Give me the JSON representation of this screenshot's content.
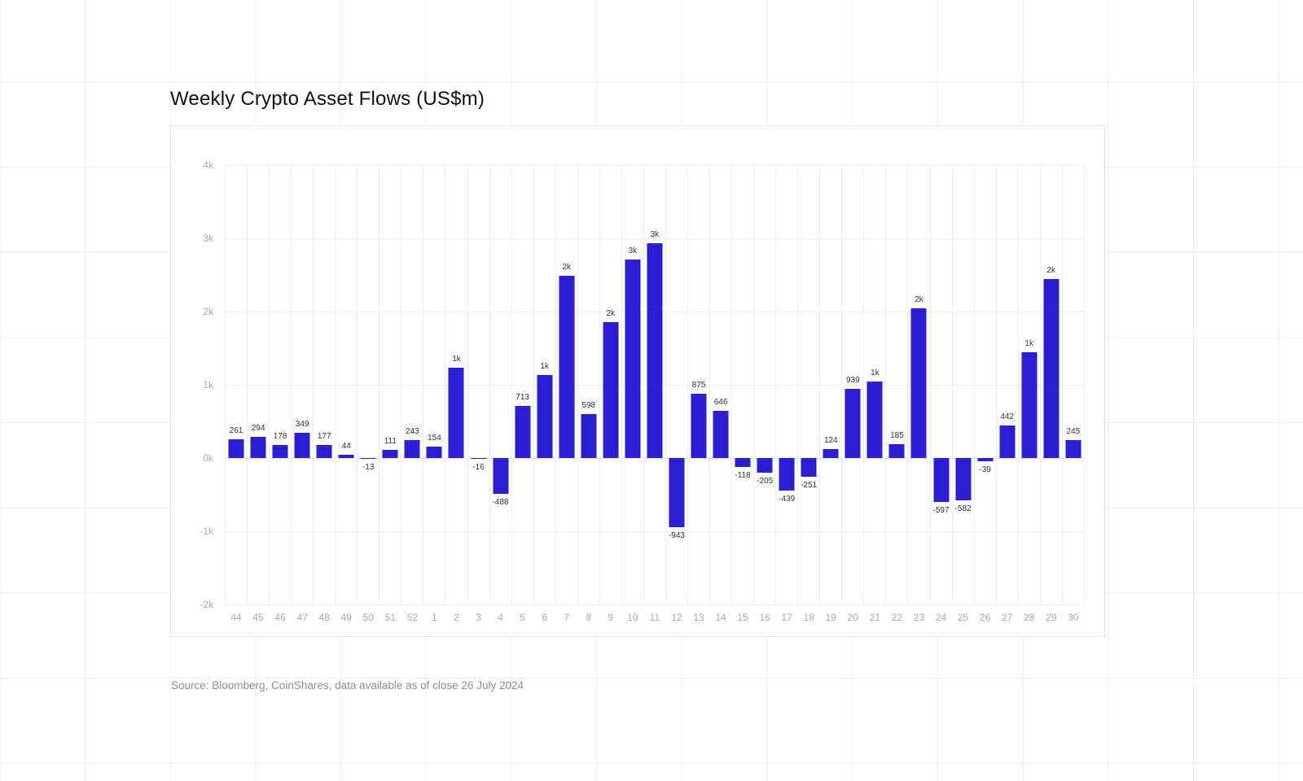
{
  "chart": {
    "title": "Weekly Crypto Asset Flows (US$m)",
    "source": "Source: Bloomberg, CoinShares, data available as of close 26 July 2024"
  },
  "chart_data": {
    "type": "bar",
    "title": "Weekly Crypto Asset Flows (US$m)",
    "categories": [
      "44",
      "45",
      "46",
      "47",
      "48",
      "49",
      "50",
      "51",
      "52",
      "1",
      "2",
      "3",
      "4",
      "5",
      "6",
      "7",
      "8",
      "9",
      "10",
      "11",
      "12",
      "13",
      "14",
      "15",
      "16",
      "17",
      "18",
      "19",
      "20",
      "21",
      "22",
      "23",
      "24",
      "25",
      "26",
      "27",
      "28",
      "29",
      "30"
    ],
    "values": [
      261,
      294,
      178,
      349,
      177,
      44,
      -13,
      111,
      243,
      154,
      1230,
      -16,
      -488,
      713,
      1130,
      2490,
      598,
      1860,
      2710,
      2930,
      -943,
      875,
      646,
      -118,
      -205,
      -439,
      -251,
      124,
      939,
      1050,
      185,
      2040,
      -597,
      -582,
      -39,
      442,
      1450,
      2450,
      245
    ],
    "bar_labels": [
      "261",
      "294",
      "178",
      "349",
      "177",
      "44",
      "-13",
      "111",
      "243",
      "154",
      "1k",
      "-16",
      "-488",
      "713",
      "1k",
      "2k",
      "598",
      "2k",
      "3k",
      "3k",
      "-943",
      "875",
      "646",
      "-118",
      "-205",
      "-439",
      "-251",
      "124",
      "939",
      "1k",
      "185",
      "2k",
      "-597",
      "-582",
      "-39",
      "442",
      "1k",
      "2k",
      "245"
    ],
    "ylim": [
      -2000,
      4000
    ],
    "yticks": [
      {
        "value": 4000,
        "label": "4k"
      },
      {
        "value": 3000,
        "label": "3k"
      },
      {
        "value": 2000,
        "label": "2k"
      },
      {
        "value": 1000,
        "label": "1k"
      },
      {
        "value": 0,
        "label": "0k"
      },
      {
        "value": -1000,
        "label": "-1k"
      },
      {
        "value": -2000,
        "label": "-2k"
      }
    ],
    "grid": true,
    "legend": "none",
    "bar_color": "#2b1ed3",
    "source": "Source: Bloomberg, CoinShares, data available as of close 26 July 2024"
  }
}
